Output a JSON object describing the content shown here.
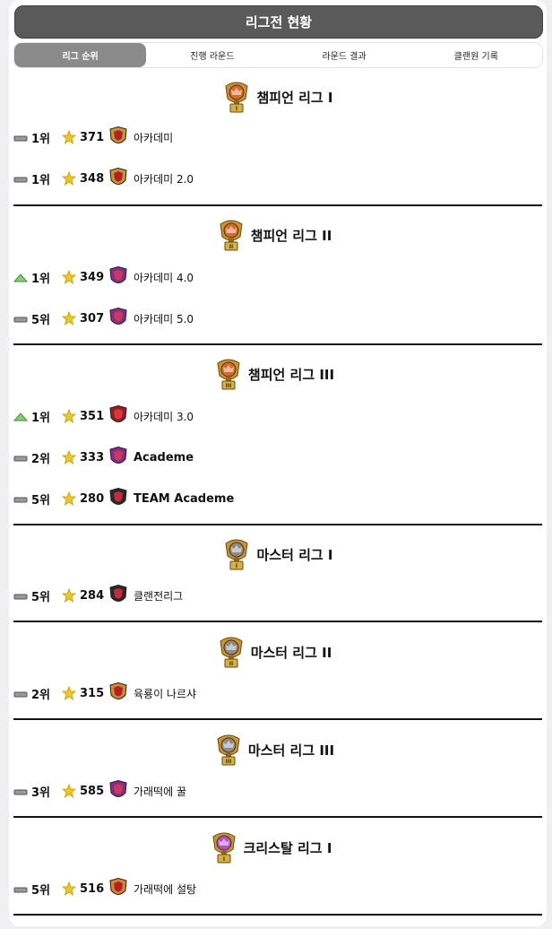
{
  "header": {
    "title": "리그전 현황"
  },
  "tabs": [
    {
      "label": "리그 순위",
      "active": true
    },
    {
      "label": "진행 라운드",
      "active": false
    },
    {
      "label": "라운드 결과",
      "active": false
    },
    {
      "label": "클랜원 기록",
      "active": false
    }
  ],
  "colors": {
    "champion": "#d9692b",
    "master": "#8a8a8a",
    "crystal": "#b04fc9",
    "up": "#7ed36a",
    "same": "#9a9a9a",
    "star": "#f5c518"
  },
  "leagues": [
    {
      "name": "챔피언 리그 I",
      "tier": "champion",
      "level": "I",
      "rows": [
        {
          "trend": "same",
          "rank": "1위",
          "stars": "371",
          "clan_icon": "shield-gold-icon",
          "name": "아카데미"
        },
        {
          "trend": "same",
          "rank": "1위",
          "stars": "348",
          "clan_icon": "shield-gold-icon",
          "name": "아카데미 2.0"
        }
      ]
    },
    {
      "name": "챔피언 리그 II",
      "tier": "champion",
      "level": "II",
      "rows": [
        {
          "trend": "up",
          "rank": "1위",
          "stars": "349",
          "clan_icon": "shield-purple-icon",
          "name": "아카데미 4.0"
        },
        {
          "trend": "same",
          "rank": "5위",
          "stars": "307",
          "clan_icon": "shield-purple-icon",
          "name": "아카데미 5.0"
        }
      ]
    },
    {
      "name": "챔피언 리그 III",
      "tier": "champion",
      "level": "III",
      "rows": [
        {
          "trend": "up",
          "rank": "1위",
          "stars": "351",
          "clan_icon": "shield-red-icon",
          "name": "아카데미 3.0"
        },
        {
          "trend": "same",
          "rank": "2위",
          "stars": "333",
          "clan_icon": "shield-purple-icon",
          "name": "Academe"
        },
        {
          "trend": "same",
          "rank": "5위",
          "stars": "280",
          "clan_icon": "shield-dark-icon",
          "name": "TEAM Academe"
        }
      ]
    },
    {
      "name": "마스터 리그 I",
      "tier": "master",
      "level": "I",
      "rows": [
        {
          "trend": "same",
          "rank": "5위",
          "stars": "284",
          "clan_icon": "shield-dark-icon",
          "name": "클랜전리그"
        }
      ]
    },
    {
      "name": "마스터 리그 II",
      "tier": "master",
      "level": "II",
      "rows": [
        {
          "trend": "same",
          "rank": "2위",
          "stars": "315",
          "clan_icon": "shield-orange-icon",
          "name": "육룡이 나르샤"
        }
      ]
    },
    {
      "name": "마스터 리그 III",
      "tier": "master",
      "level": "III",
      "rows": [
        {
          "trend": "same",
          "rank": "3위",
          "stars": "585",
          "clan_icon": "shield-purple-icon",
          "name": "가래떡에 꿀"
        }
      ]
    },
    {
      "name": "크리스탈 리그 I",
      "tier": "crystal",
      "level": "I",
      "rows": [
        {
          "trend": "same",
          "rank": "5위",
          "stars": "516",
          "clan_icon": "shield-orange-icon",
          "name": "가래떡에 설탕"
        }
      ]
    }
  ]
}
